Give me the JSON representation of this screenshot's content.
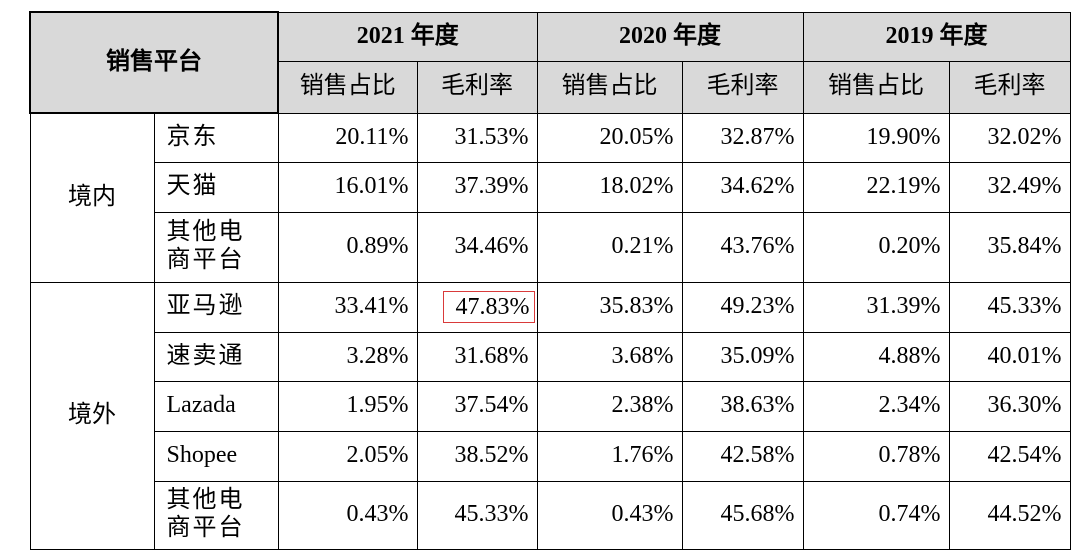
{
  "header": {
    "platform_label": "销售平台",
    "years": [
      "2021 年度",
      "2020 年度",
      "2019 年度"
    ],
    "sub_sales_ratio": "销售占比",
    "sub_gross_margin": "毛利率"
  },
  "groups": {
    "domestic": "境内",
    "overseas": "境外"
  },
  "rows": [
    {
      "platform": "京东",
      "values": [
        "20.11%",
        "31.53%",
        "20.05%",
        "32.87%",
        "19.90%",
        "32.02%"
      ]
    },
    {
      "platform": "天猫",
      "values": [
        "16.01%",
        "37.39%",
        "18.02%",
        "34.62%",
        "22.19%",
        "32.49%"
      ]
    },
    {
      "platform_line1": "其他电",
      "platform_line2": "商平台",
      "values": [
        "0.89%",
        "34.46%",
        "0.21%",
        "43.76%",
        "0.20%",
        "35.84%"
      ]
    },
    {
      "platform": "亚马逊",
      "values": [
        "33.41%",
        "47.83%",
        "35.83%",
        "49.23%",
        "31.39%",
        "45.33%"
      ]
    },
    {
      "platform": "速卖通",
      "values": [
        "3.28%",
        "31.68%",
        "3.68%",
        "35.09%",
        "4.88%",
        "40.01%"
      ]
    },
    {
      "platform": "Lazada",
      "values": [
        "1.95%",
        "37.54%",
        "2.38%",
        "38.63%",
        "2.34%",
        "36.30%"
      ]
    },
    {
      "platform": "Shopee",
      "values": [
        "2.05%",
        "38.52%",
        "1.76%",
        "42.58%",
        "0.78%",
        "42.54%"
      ]
    },
    {
      "platform_line1": "其他电",
      "platform_line2": "商平台",
      "values": [
        "0.43%",
        "45.33%",
        "0.43%",
        "45.68%",
        "0.74%",
        "44.52%"
      ]
    }
  ],
  "highlight_color": "#d93a3a",
  "header_bg": "#d9d9d9"
}
